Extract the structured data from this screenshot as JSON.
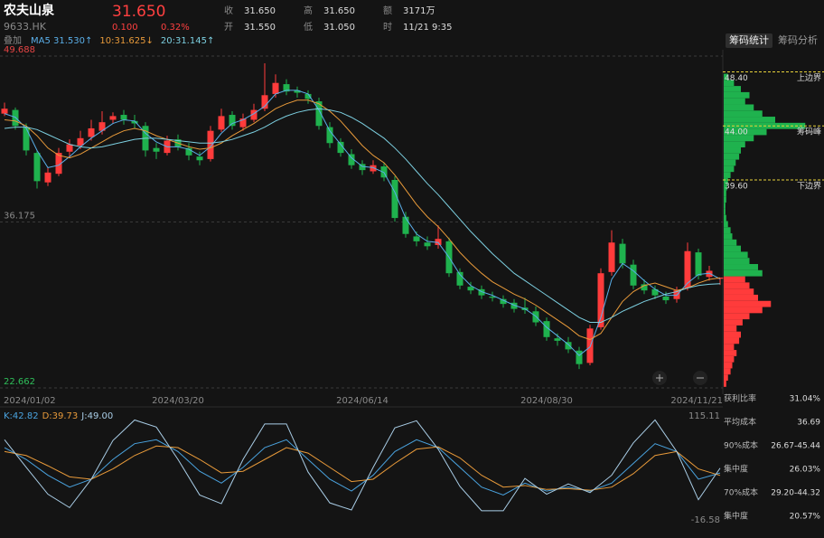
{
  "header": {
    "name": "农夫山泉",
    "code": "9633.HK",
    "price": "31.650",
    "change": "0.100",
    "change_pct": "0.32%",
    "overlay": "叠加",
    "stats": [
      [
        "收",
        "31.650"
      ],
      [
        "高",
        "31.650"
      ],
      [
        "额",
        "3171万"
      ],
      [
        "开",
        "31.550"
      ],
      [
        "低",
        "31.050"
      ],
      [
        "时",
        "11/21 9:35"
      ]
    ]
  },
  "chart_data": [
    {
      "type": "candlestick",
      "up_color": "#ff3b3b",
      "down_color": "#1fb24e",
      "categories": [
        "2024/01/02",
        null,
        null,
        null,
        null,
        null,
        null,
        null,
        null,
        null,
        null,
        null,
        null,
        null,
        null,
        null,
        "2024/03/20",
        null,
        null,
        null,
        null,
        null,
        null,
        null,
        null,
        null,
        null,
        null,
        null,
        null,
        null,
        null,
        null,
        "2024/06/14",
        null,
        null,
        null,
        null,
        null,
        null,
        null,
        null,
        null,
        null,
        null,
        null,
        null,
        null,
        null,
        null,
        "2024/08/30",
        null,
        null,
        null,
        null,
        null,
        null,
        null,
        null,
        null,
        null,
        null,
        null,
        null,
        null,
        null,
        "2024/11/21"
      ],
      "open": [
        45.0,
        45.3,
        43.9,
        41.8,
        39.4,
        40.1,
        41.9,
        42.4,
        43.1,
        43.6,
        44.5,
        44.9,
        44.4,
        44.0,
        42.2,
        41.8,
        42.9,
        42.2,
        41.5,
        41.3,
        43.7,
        44.9,
        43.9,
        44.5,
        45.4,
        46.6,
        47.4,
        46.9,
        46.6,
        46.0,
        43.9,
        42.7,
        41.7,
        40.9,
        40.3,
        40.7,
        39.6,
        36.6,
        35.0,
        34.5,
        34.3,
        34.6,
        32.1,
        30.9,
        30.7,
        30.1,
        29.9,
        29.6,
        29.2,
        28.9,
        28.1,
        26.7,
        26.4,
        25.7,
        24.7,
        27.6,
        32.1,
        34.4,
        32.7,
        31.1,
        30.7,
        30.1,
        29.9,
        30.8,
        33.7,
        31.7,
        31.55
      ],
      "high": [
        45.9,
        45.5,
        44.2,
        42.0,
        40.6,
        42.2,
        42.9,
        43.6,
        44.5,
        45.2,
        45.1,
        45.3,
        44.9,
        44.3,
        42.6,
        43.2,
        43.3,
        42.6,
        41.9,
        44.0,
        45.4,
        45.2,
        45.0,
        45.8,
        49.1,
        48.2,
        47.8,
        47.2,
        46.9,
        46.3,
        44.3,
        43.0,
        42.1,
        41.2,
        41.2,
        41.0,
        39.9,
        37.0,
        35.4,
        35.0,
        35.9,
        34.9,
        32.4,
        31.3,
        31.0,
        30.5,
        30.2,
        29.9,
        30.0,
        29.3,
        28.4,
        27.1,
        26.8,
        26.0,
        27.8,
        32.4,
        35.5,
        34.8,
        33.1,
        31.5,
        31.0,
        30.5,
        30.9,
        34.5,
        34.0,
        32.6,
        31.65
      ],
      "low": [
        44.8,
        43.7,
        41.6,
        38.9,
        39.1,
        39.9,
        41.4,
        42.1,
        42.8,
        43.3,
        44.2,
        44.1,
        43.8,
        41.5,
        41.3,
        41.6,
        42.0,
        41.2,
        40.8,
        41.1,
        43.5,
        43.7,
        43.6,
        44.3,
        45.2,
        46.3,
        46.5,
        46.3,
        45.8,
        43.7,
        42.2,
        41.5,
        40.5,
        40.0,
        40.1,
        39.5,
        36.2,
        34.9,
        34.2,
        33.9,
        34.0,
        31.7,
        30.7,
        30.3,
        29.9,
        29.7,
        29.2,
        28.8,
        28.7,
        27.7,
        26.5,
        26.1,
        25.5,
        24.2,
        24.5,
        27.4,
        31.8,
        32.4,
        30.7,
        30.3,
        29.9,
        29.5,
        29.6,
        30.6,
        31.5,
        31.4,
        31.05
      ],
      "close": [
        45.4,
        44.0,
        42.0,
        39.5,
        40.2,
        41.8,
        42.5,
        43.0,
        43.8,
        44.3,
        44.8,
        44.5,
        44.2,
        42.0,
        41.9,
        42.8,
        42.3,
        41.6,
        41.2,
        43.6,
        44.8,
        44.0,
        44.6,
        45.3,
        46.5,
        47.5,
        46.8,
        46.7,
        46.2,
        44.0,
        42.6,
        41.8,
        40.8,
        40.4,
        40.8,
        39.8,
        36.5,
        35.2,
        34.6,
        34.2,
        34.8,
        32.0,
        31.0,
        30.6,
        30.2,
        30.0,
        29.5,
        29.1,
        29.0,
        28.0,
        26.8,
        26.5,
        25.8,
        24.6,
        27.5,
        32.0,
        34.5,
        32.8,
        31.0,
        30.6,
        30.2,
        29.8,
        30.6,
        33.8,
        31.8,
        32.2,
        31.65
      ],
      "ylim": [
        22.662,
        49.688
      ],
      "yticks": [
        49.688,
        36.175,
        22.662
      ],
      "ytick_colors": [
        "#e84545",
        "#8a8a8a",
        "#2fbf5a"
      ],
      "grid": true,
      "series": [
        {
          "name": "MA5 31.530↑",
          "color": "#5aaee8",
          "values": [
            45.0,
            44.7,
            43.8,
            42.0,
            40.6,
            40.8,
            41.5,
            42.3,
            43.0,
            43.6,
            44.2,
            44.5,
            44.4,
            43.4,
            42.7,
            42.3,
            42.3,
            42.1,
            41.6,
            42.3,
            43.4,
            44.2,
            44.5,
            45.0,
            45.6,
            46.6,
            46.9,
            46.9,
            46.6,
            45.3,
            43.6,
            42.5,
            41.4,
            40.7,
            40.6,
            40.2,
            38.6,
            36.5,
            35.2,
            34.6,
            34.5,
            33.3,
            31.9,
            31.0,
            30.5,
            30.2,
            29.8,
            29.4,
            29.1,
            28.5,
            27.6,
            26.9,
            26.2,
            25.3,
            26.0,
            28.4,
            31.5,
            32.8,
            32.2,
            31.4,
            30.7,
            30.2,
            30.2,
            31.2,
            31.9,
            32.0,
            31.53
          ]
        },
        {
          "name": "10:31.625↓",
          "color": "#e89a3a",
          "values": [
            44.5,
            44.4,
            44.0,
            43.2,
            42.2,
            41.6,
            41.4,
            41.7,
            42.2,
            42.7,
            43.2,
            43.6,
            43.8,
            43.6,
            43.2,
            42.9,
            42.6,
            42.3,
            42.1,
            42.2,
            42.6,
            43.2,
            43.7,
            44.2,
            44.8,
            45.4,
            45.8,
            46.1,
            46.1,
            45.8,
            45.2,
            44.4,
            43.4,
            42.4,
            41.6,
            41.0,
            40.0,
            38.8,
            37.6,
            36.6,
            35.8,
            34.8,
            33.7,
            32.8,
            32.0,
            31.3,
            30.8,
            30.3,
            29.9,
            29.4,
            28.8,
            28.2,
            27.6,
            26.9,
            26.6,
            27.1,
            28.4,
            29.7,
            30.5,
            31.0,
            31.2,
            30.9,
            30.6,
            30.8,
            31.2,
            31.5,
            31.625
          ]
        },
        {
          "name": "20:31.145↑",
          "color": "#7ccfe0",
          "values": [
            43.8,
            43.9,
            43.9,
            43.7,
            43.3,
            42.9,
            42.5,
            42.3,
            42.2,
            42.3,
            42.5,
            42.7,
            42.9,
            43.0,
            43.0,
            42.9,
            42.8,
            42.7,
            42.6,
            42.6,
            42.7,
            42.9,
            43.2,
            43.5,
            43.9,
            44.4,
            44.8,
            45.1,
            45.3,
            45.4,
            45.3,
            45.1,
            44.7,
            44.2,
            43.6,
            43.0,
            42.2,
            41.3,
            40.3,
            39.3,
            38.4,
            37.4,
            36.4,
            35.4,
            34.5,
            33.6,
            32.8,
            32.0,
            31.4,
            30.8,
            30.2,
            29.6,
            29.0,
            28.4,
            28.0,
            28.0,
            28.4,
            28.9,
            29.3,
            29.7,
            30.0,
            30.3,
            30.5,
            30.8,
            31.0,
            31.1,
            31.145
          ]
        }
      ]
    },
    {
      "type": "line",
      "ylim": [
        -16.58,
        115.11
      ],
      "yticks": [
        115.11,
        -16.58
      ],
      "series": [
        {
          "name": "K:42.82",
          "color": "#4aa3df",
          "values": [
            75,
            60,
            40,
            25,
            35,
            60,
            80,
            85,
            70,
            45,
            30,
            50,
            75,
            85,
            60,
            35,
            20,
            40,
            70,
            85,
            75,
            50,
            25,
            15,
            30,
            20,
            25,
            20,
            30,
            55,
            80,
            70,
            35,
            42.82
          ]
        },
        {
          "name": "D:39.73",
          "color": "#e89a3a",
          "values": [
            70,
            65,
            52,
            38,
            35,
            48,
            65,
            77,
            75,
            60,
            43,
            45,
            60,
            75,
            68,
            50,
            32,
            35,
            55,
            73,
            76,
            62,
            40,
            25,
            27,
            22,
            23,
            21,
            25,
            42,
            65,
            70,
            48,
            39.73
          ]
        },
        {
          "name": "J:49.00",
          "color": "#a9cde6",
          "values": [
            85,
            50,
            16,
            -1,
            35,
            84,
            110,
            101,
            60,
            15,
            4,
            60,
            105,
            105,
            44,
            5,
            -4,
            50,
            100,
            109,
            73,
            26,
            -5,
            -5,
            36,
            16,
            29,
            18,
            40,
            81,
            110,
            70,
            9,
            49.0
          ]
        }
      ]
    }
  ],
  "chips": {
    "tabs": [
      "筹码统计",
      "筹码分析"
    ],
    "above_color": "#1fb24e",
    "below_color": "#ff3b3b",
    "prices": [
      23.0,
      23.5,
      24.0,
      24.5,
      25.0,
      25.5,
      26.0,
      26.5,
      27.0,
      27.5,
      28.0,
      28.5,
      29.0,
      29.5,
      30.0,
      30.5,
      31.0,
      31.5,
      32.0,
      32.5,
      33.0,
      33.5,
      34.0,
      34.5,
      35.0,
      35.5,
      36.0,
      36.5,
      37.0,
      37.5,
      38.0,
      38.5,
      39.0,
      39.5,
      40.0,
      40.5,
      41.0,
      41.5,
      42.0,
      42.5,
      43.0,
      43.5,
      44.0,
      44.5,
      45.0,
      45.5,
      46.0,
      46.5,
      47.0,
      47.5,
      48.0
    ],
    "values": [
      3,
      5,
      8,
      10,
      12,
      15,
      12,
      18,
      20,
      15,
      22,
      30,
      45,
      55,
      40,
      35,
      30,
      25,
      45,
      40,
      30,
      28,
      20,
      15,
      10,
      8,
      5,
      3,
      2,
      2,
      3,
      3,
      4,
      5,
      8,
      12,
      14,
      18,
      20,
      25,
      35,
      50,
      95,
      60,
      45,
      35,
      25,
      30,
      20,
      12,
      5
    ],
    "levels": [
      {
        "value": 48.4,
        "label": "48.40",
        "name": "上边界"
      },
      {
        "value": 44.0,
        "label": "44.00",
        "name": "筹码峰"
      },
      {
        "value": 39.6,
        "label": "39.60",
        "name": "下边界"
      }
    ],
    "stats": [
      [
        "获利比率",
        "31.04%"
      ],
      [
        "平均成本",
        "36.69"
      ],
      [
        "90%成本",
        "26.67-45.44"
      ],
      [
        "集中度",
        "26.03%"
      ],
      [
        "70%成本",
        "29.20-44.32"
      ],
      [
        "集中度",
        "20.57%"
      ]
    ]
  }
}
